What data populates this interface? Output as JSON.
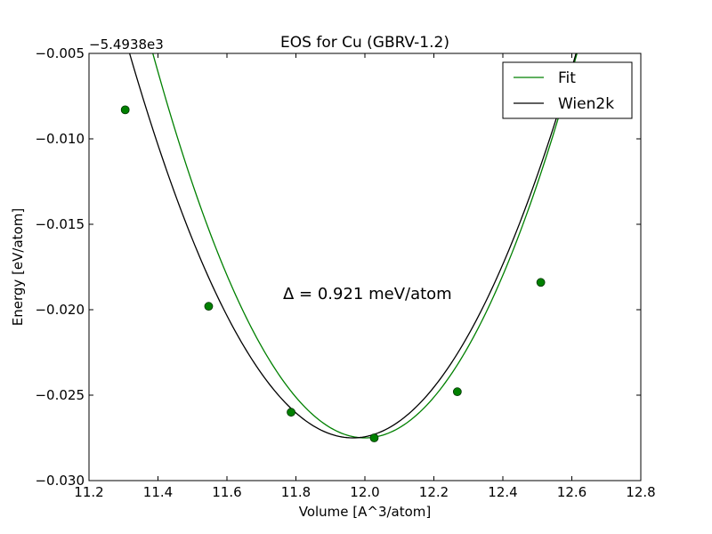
{
  "chart_data": {
    "type": "line",
    "title": "EOS for Cu (GBRV-1.2)",
    "xlabel": "Volume [A^3/atom]",
    "ylabel": "Energy [eV/atom]",
    "offset_label": "−5.4938e3",
    "annotation": "Δ = 0.921 meV/atom",
    "xlim": [
      11.2,
      12.8
    ],
    "ylim": [
      -0.03,
      -0.005
    ],
    "x_ticks": [
      11.2,
      11.4,
      11.6,
      11.8,
      12.0,
      12.2,
      12.4,
      12.6,
      12.8
    ],
    "x_tick_labels": [
      "11.2",
      "11.4",
      "11.6",
      "11.8",
      "12.0",
      "12.2",
      "12.4",
      "12.6",
      "12.8"
    ],
    "y_ticks": [
      -0.03,
      -0.025,
      -0.02,
      -0.015,
      -0.01,
      -0.005
    ],
    "y_tick_labels": [
      "−0.030",
      "−0.025",
      "−0.020",
      "−0.015",
      "−0.010",
      "−0.005"
    ],
    "grid": false,
    "legend_position": "top-right",
    "legend": [
      {
        "name": "Fit",
        "color": "#008000"
      },
      {
        "name": "Wien2k",
        "color": "#000000"
      }
    ],
    "series": [
      {
        "name": "Fit",
        "color": "#008000",
        "style": "line",
        "eos": {
          "v0": 12.0,
          "e0": -0.0275,
          "curvature": 0.0595,
          "x_start": 11.305,
          "x_end": 12.8
        }
      },
      {
        "name": "Wien2k",
        "color": "#000000",
        "style": "line",
        "eos": {
          "v0": 11.965,
          "e0": -0.0275,
          "curvature": 0.0537,
          "x_start": 11.305,
          "x_end": 12.8
        }
      },
      {
        "name": "data points",
        "color": "#008000",
        "style": "markers",
        "x": [
          11.305,
          11.547,
          11.786,
          12.027,
          12.268,
          12.51
        ],
        "y": [
          -0.0083,
          -0.0198,
          -0.026,
          -0.0275,
          -0.0248,
          -0.0184
        ]
      }
    ]
  }
}
